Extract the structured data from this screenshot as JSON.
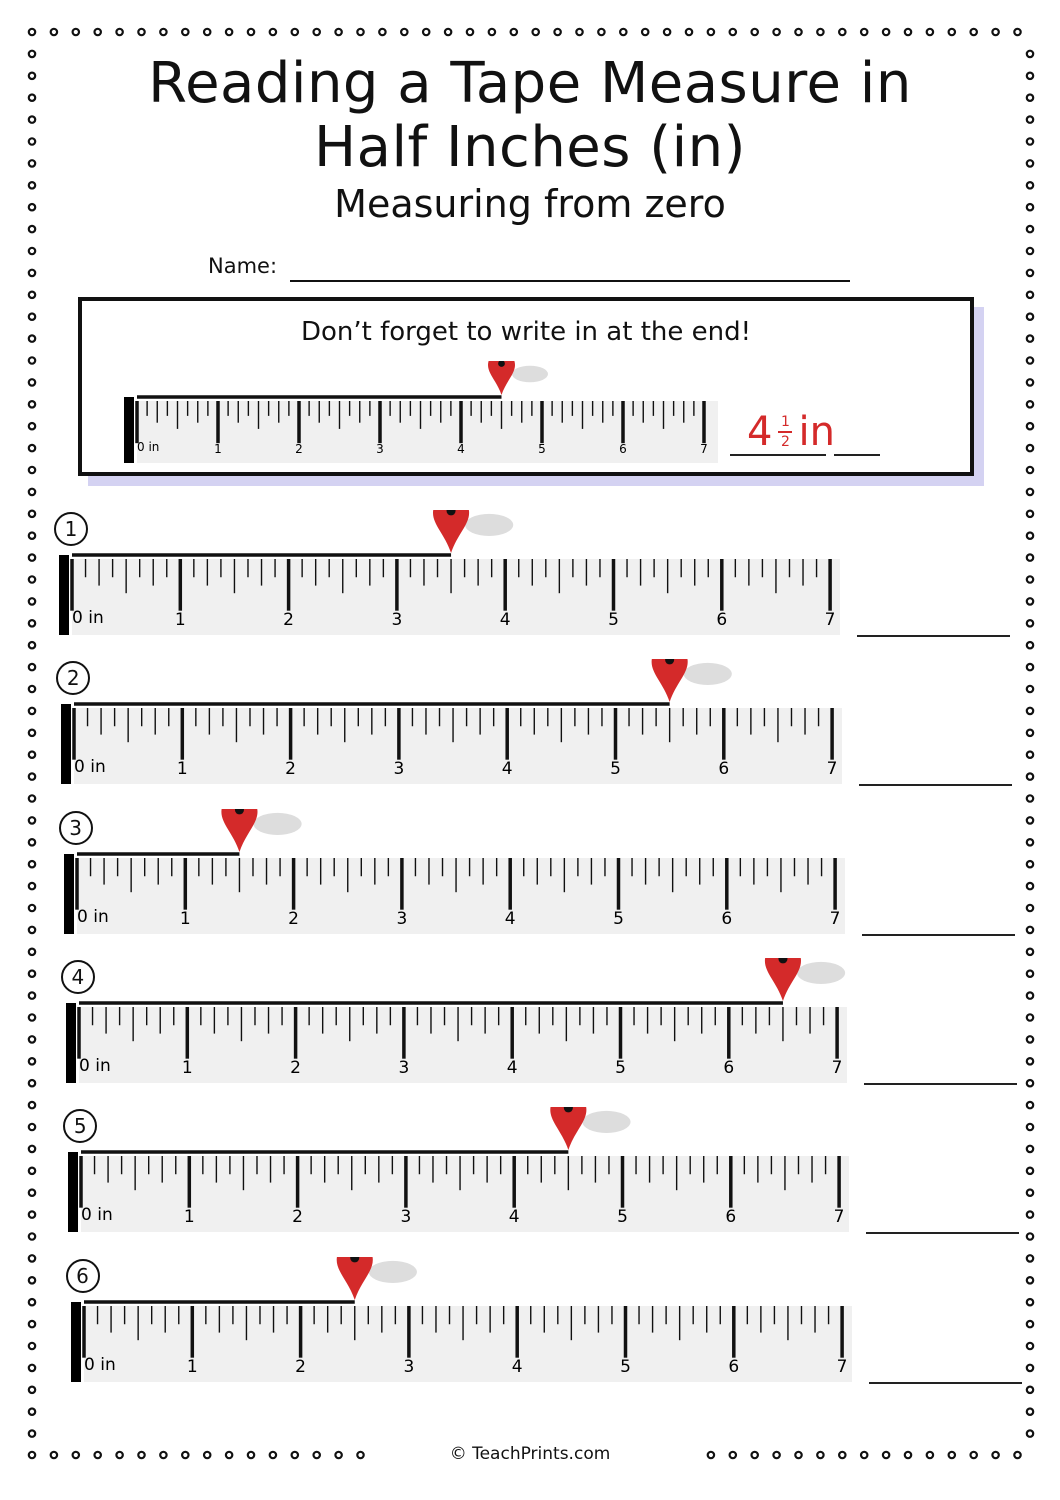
{
  "title_line1": "Reading a Tape Measure in",
  "title_line2": "Half Inches (in)",
  "subtitle": "Measuring from zero",
  "name_label": "Name:",
  "example": {
    "instruction": "Don’t forget to write in at the end!",
    "measurement": 4.5,
    "answer_whole": "4",
    "answer_num": "1",
    "answer_den": "2",
    "answer_unit": "in"
  },
  "ruler": {
    "zero_label": "0 in",
    "labels": [
      "1",
      "2",
      "3",
      "4",
      "5",
      "6",
      "7"
    ],
    "max_inches": 7,
    "divisions_per_inch": 8,
    "pin_color": "#d42a2a"
  },
  "problems": [
    {
      "number": "1",
      "measurement": 3.5
    },
    {
      "number": "2",
      "measurement": 5.5
    },
    {
      "number": "3",
      "measurement": 1.5
    },
    {
      "number": "4",
      "measurement": 6.5
    },
    {
      "number": "5",
      "measurement": 4.5
    },
    {
      "number": "6",
      "measurement": 2.5
    }
  ],
  "footer": "© TeachPrints.com"
}
